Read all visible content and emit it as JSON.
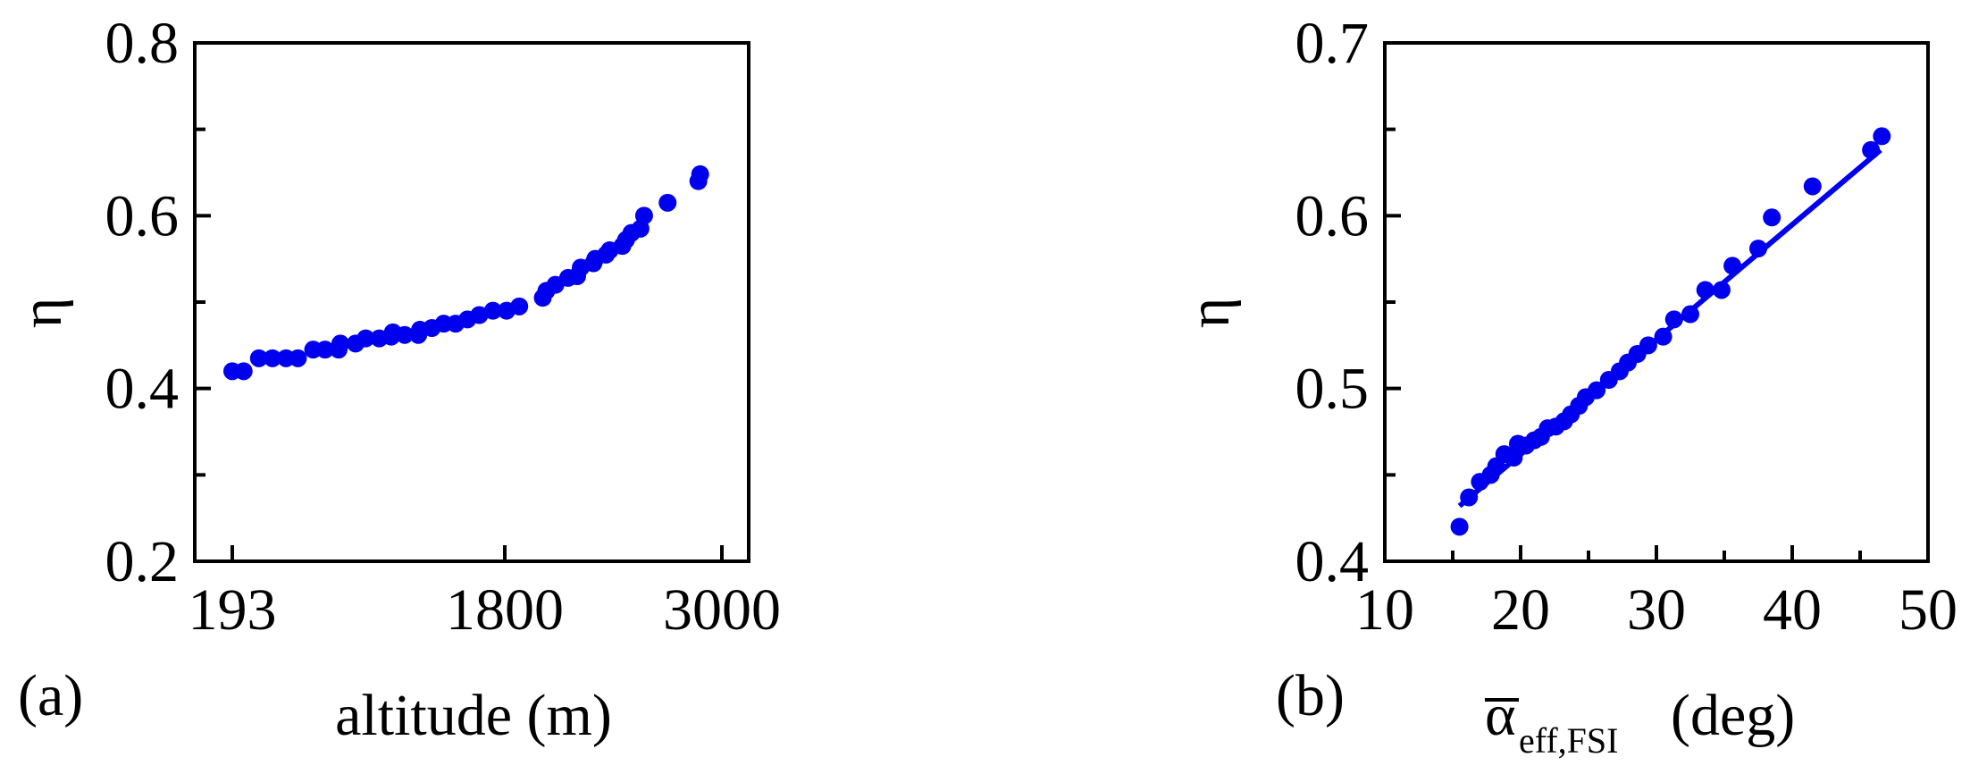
{
  "chart_data": [
    {
      "type": "scatter",
      "panel_label": "(a)",
      "xlabel": "altitude (m)",
      "ylabel": "η",
      "xticks": [
        "193",
        "1800",
        "3000"
      ],
      "yticks": [
        "0.2",
        "0.4",
        "0.6",
        "0.8"
      ],
      "ylim": [
        0.2,
        0.8
      ],
      "grid": false,
      "color": "#0000ee",
      "series": [
        {
          "x": [
            193,
            260,
            350,
            430,
            510,
            580,
            670,
            740,
            820,
            830,
            920,
            980,
            1060,
            1130,
            1140,
            1210,
            1290,
            1300,
            1370,
            1440,
            1510,
            1580,
            1650,
            1730,
            1810,
            1880,
            2010,
            2030,
            2080,
            2150,
            2200,
            2220,
            2290,
            2300,
            2360,
            2380,
            2450,
            2470,
            2500,
            2550,
            2570,
            2700,
            2870,
            2880
          ],
          "y": [
            0.42,
            0.42,
            0.435,
            0.435,
            0.435,
            0.435,
            0.445,
            0.445,
            0.445,
            0.452,
            0.452,
            0.458,
            0.458,
            0.46,
            0.465,
            0.462,
            0.462,
            0.468,
            0.47,
            0.475,
            0.475,
            0.48,
            0.485,
            0.49,
            0.49,
            0.495,
            0.505,
            0.513,
            0.52,
            0.528,
            0.53,
            0.54,
            0.545,
            0.55,
            0.555,
            0.56,
            0.565,
            0.572,
            0.58,
            0.585,
            0.6,
            0.615,
            0.64,
            0.648
          ]
        }
      ]
    },
    {
      "type": "scatter",
      "panel_label": "(b)",
      "xlabel_main": "α",
      "xlabel_sub": "eff,FSI",
      "xlabel_unit": "(deg)",
      "ylabel": "η",
      "xticks": [
        "10",
        "20",
        "30",
        "40",
        "50"
      ],
      "yticks": [
        "0.4",
        "0.5",
        "0.6",
        "0.7"
      ],
      "xlim": [
        10,
        50
      ],
      "ylim": [
        0.4,
        0.7
      ],
      "grid": false,
      "color": "#0000ee",
      "fit_line": {
        "x": [
          15.5,
          46.5
        ],
        "y": [
          0.432,
          0.638
        ]
      },
      "series": [
        {
          "x": [
            15.5,
            16.2,
            17.0,
            17.8,
            18.2,
            18.8,
            19.5,
            19.8,
            20.4,
            21.0,
            21.5,
            22.0,
            22.6,
            23.2,
            23.7,
            24.3,
            24.8,
            25.6,
            26.5,
            27.3,
            27.9,
            28.6,
            29.4,
            30.5,
            31.3,
            32.5,
            33.6,
            34.8,
            35.6,
            37.5,
            38.5,
            41.5,
            45.8,
            46.6
          ],
          "y": [
            0.42,
            0.437,
            0.446,
            0.45,
            0.455,
            0.462,
            0.46,
            0.468,
            0.467,
            0.47,
            0.472,
            0.477,
            0.478,
            0.481,
            0.485,
            0.49,
            0.495,
            0.499,
            0.505,
            0.51,
            0.515,
            0.52,
            0.525,
            0.53,
            0.54,
            0.543,
            0.557,
            0.557,
            0.571,
            0.581,
            0.599,
            0.617,
            0.638,
            0.646
          ]
        }
      ]
    }
  ]
}
